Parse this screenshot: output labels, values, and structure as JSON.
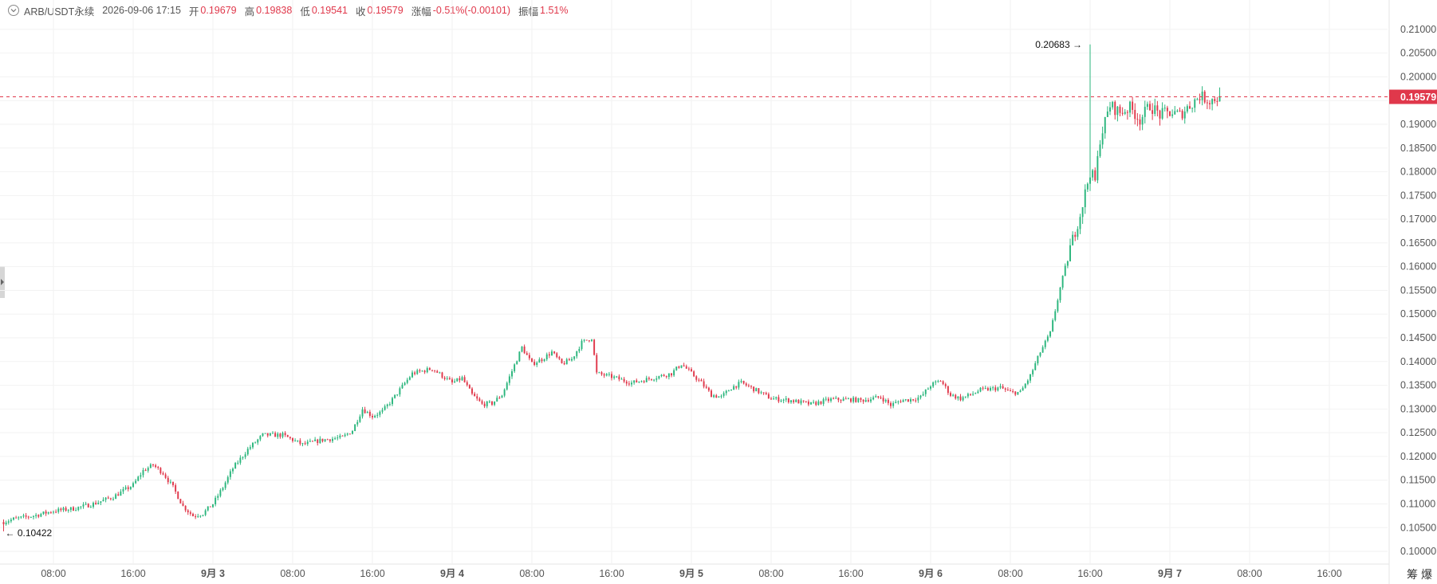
{
  "legend": {
    "symbol": "ARB/USDT永续",
    "datetime": "2026-09-06 17:15",
    "open_label": "开",
    "open": "0.19679",
    "high_label": "高",
    "high": "0.19838",
    "low_label": "低",
    "low": "0.19541",
    "close_label": "收",
    "close": "0.19579",
    "change_label": "涨幅",
    "change": "-0.51%(-0.00101)",
    "amplitude_label": "振幅",
    "amplitude": "1.51%"
  },
  "corner": {
    "left": "筹",
    "right": "爆"
  },
  "colors": {
    "up": "#2bb67d",
    "down": "#e0384b",
    "grid": "#f2f2f2",
    "text": "#555555"
  },
  "chart_data": {
    "type": "candlestick",
    "symbol": "ARB/USDT永续",
    "interval_minutes": 15,
    "x_ticks": [
      "08:00",
      "16:00",
      "9月 3",
      "08:00",
      "16:00",
      "9月 4",
      "08:00",
      "16:00",
      "9月 5",
      "08:00",
      "16:00",
      "9月 6",
      "08:00",
      "16:00",
      "9月 7",
      "08:00",
      "16:00"
    ],
    "x_tick_hours": [
      8,
      16,
      24,
      32,
      40,
      48,
      56,
      64,
      72,
      80,
      88,
      96,
      104,
      112,
      120,
      128,
      136
    ],
    "x_range_hours": [
      2.5,
      142
    ],
    "y_ticks": [
      "0.21000",
      "0.20500",
      "0.20000",
      "0.19500",
      "0.19000",
      "0.18500",
      "0.18000",
      "0.17500",
      "0.17000",
      "0.16500",
      "0.16000",
      "0.15500",
      "0.15000",
      "0.14500",
      "0.14000",
      "0.13500",
      "0.13000",
      "0.12500",
      "0.12000",
      "0.11500",
      "0.11000",
      "0.10500",
      "0.10000"
    ],
    "ylim": [
      0.099,
      0.2125
    ],
    "last_price": 0.19579,
    "last_price_label": "0.19579",
    "max_marker": {
      "label": "0.20683",
      "value": 0.20683,
      "hour": 112.0
    },
    "min_marker": {
      "label": "0.10422",
      "value": 0.10422,
      "hour": 3.0
    },
    "series_anchors_hour_price": [
      [
        3,
        0.1062
      ],
      [
        4,
        0.1068
      ],
      [
        6,
        0.1075
      ],
      [
        8,
        0.1085
      ],
      [
        10,
        0.109
      ],
      [
        12,
        0.11
      ],
      [
        14,
        0.1115
      ],
      [
        16,
        0.114
      ],
      [
        17,
        0.117
      ],
      [
        18,
        0.1182
      ],
      [
        19,
        0.1165
      ],
      [
        20,
        0.1135
      ],
      [
        21,
        0.1095
      ],
      [
        22,
        0.1075
      ],
      [
        23,
        0.108
      ],
      [
        24,
        0.11
      ],
      [
        25,
        0.1135
      ],
      [
        26,
        0.1175
      ],
      [
        27.5,
        0.1215
      ],
      [
        29,
        0.1245
      ],
      [
        31,
        0.1245
      ],
      [
        33,
        0.1225
      ],
      [
        35,
        0.1235
      ],
      [
        37,
        0.124
      ],
      [
        38,
        0.1255
      ],
      [
        39,
        0.13
      ],
      [
        40,
        0.1285
      ],
      [
        41,
        0.1295
      ],
      [
        42,
        0.132
      ],
      [
        44,
        0.1375
      ],
      [
        46,
        0.1385
      ],
      [
        47,
        0.137
      ],
      [
        48,
        0.1355
      ],
      [
        49,
        0.1365
      ],
      [
        50,
        0.133
      ],
      [
        51,
        0.131
      ],
      [
        52,
        0.1312
      ],
      [
        53,
        0.133
      ],
      [
        54,
        0.138
      ],
      [
        55,
        0.143
      ],
      [
        56,
        0.1395
      ],
      [
        57,
        0.1405
      ],
      [
        58,
        0.142
      ],
      [
        59,
        0.1395
      ],
      [
        60,
        0.1405
      ],
      [
        61,
        0.144
      ],
      [
        62,
        0.145
      ],
      [
        62.5,
        0.1375
      ],
      [
        64,
        0.1368
      ],
      [
        66,
        0.1355
      ],
      [
        68,
        0.1365
      ],
      [
        70,
        0.1375
      ],
      [
        71,
        0.1395
      ],
      [
        72,
        0.1375
      ],
      [
        73,
        0.1355
      ],
      [
        74,
        0.133
      ],
      [
        75,
        0.1325
      ],
      [
        76,
        0.1345
      ],
      [
        77,
        0.1355
      ],
      [
        78,
        0.1345
      ],
      [
        80,
        0.1322
      ],
      [
        82,
        0.1318
      ],
      [
        84,
        0.131
      ],
      [
        86,
        0.132
      ],
      [
        88,
        0.132
      ],
      [
        89,
        0.1318
      ],
      [
        91,
        0.1325
      ],
      [
        92,
        0.1308
      ],
      [
        93,
        0.1318
      ],
      [
        94,
        0.132
      ],
      [
        95,
        0.1325
      ],
      [
        96,
        0.135
      ],
      [
        97,
        0.136
      ],
      [
        98,
        0.133
      ],
      [
        99,
        0.1322
      ],
      [
        100,
        0.133
      ],
      [
        101,
        0.134
      ],
      [
        102,
        0.1342
      ],
      [
        103,
        0.1345
      ],
      [
        104,
        0.1335
      ],
      [
        105,
        0.1335
      ],
      [
        106,
        0.137
      ],
      [
        107,
        0.142
      ],
      [
        108,
        0.146
      ],
      [
        109,
        0.1555
      ],
      [
        110,
        0.164
      ],
      [
        111,
        0.171
      ],
      [
        112,
        0.18
      ],
      [
        112.5,
        0.178
      ],
      [
        113,
        0.187
      ],
      [
        114,
        0.194
      ],
      [
        115,
        0.1925
      ],
      [
        116,
        0.1935
      ],
      [
        117,
        0.191
      ],
      [
        118,
        0.194
      ],
      [
        119,
        0.192
      ],
      [
        120,
        0.1925
      ],
      [
        121,
        0.192
      ],
      [
        122,
        0.194
      ],
      [
        123,
        0.196
      ],
      [
        124,
        0.195
      ],
      [
        125,
        0.1958
      ]
    ]
  }
}
